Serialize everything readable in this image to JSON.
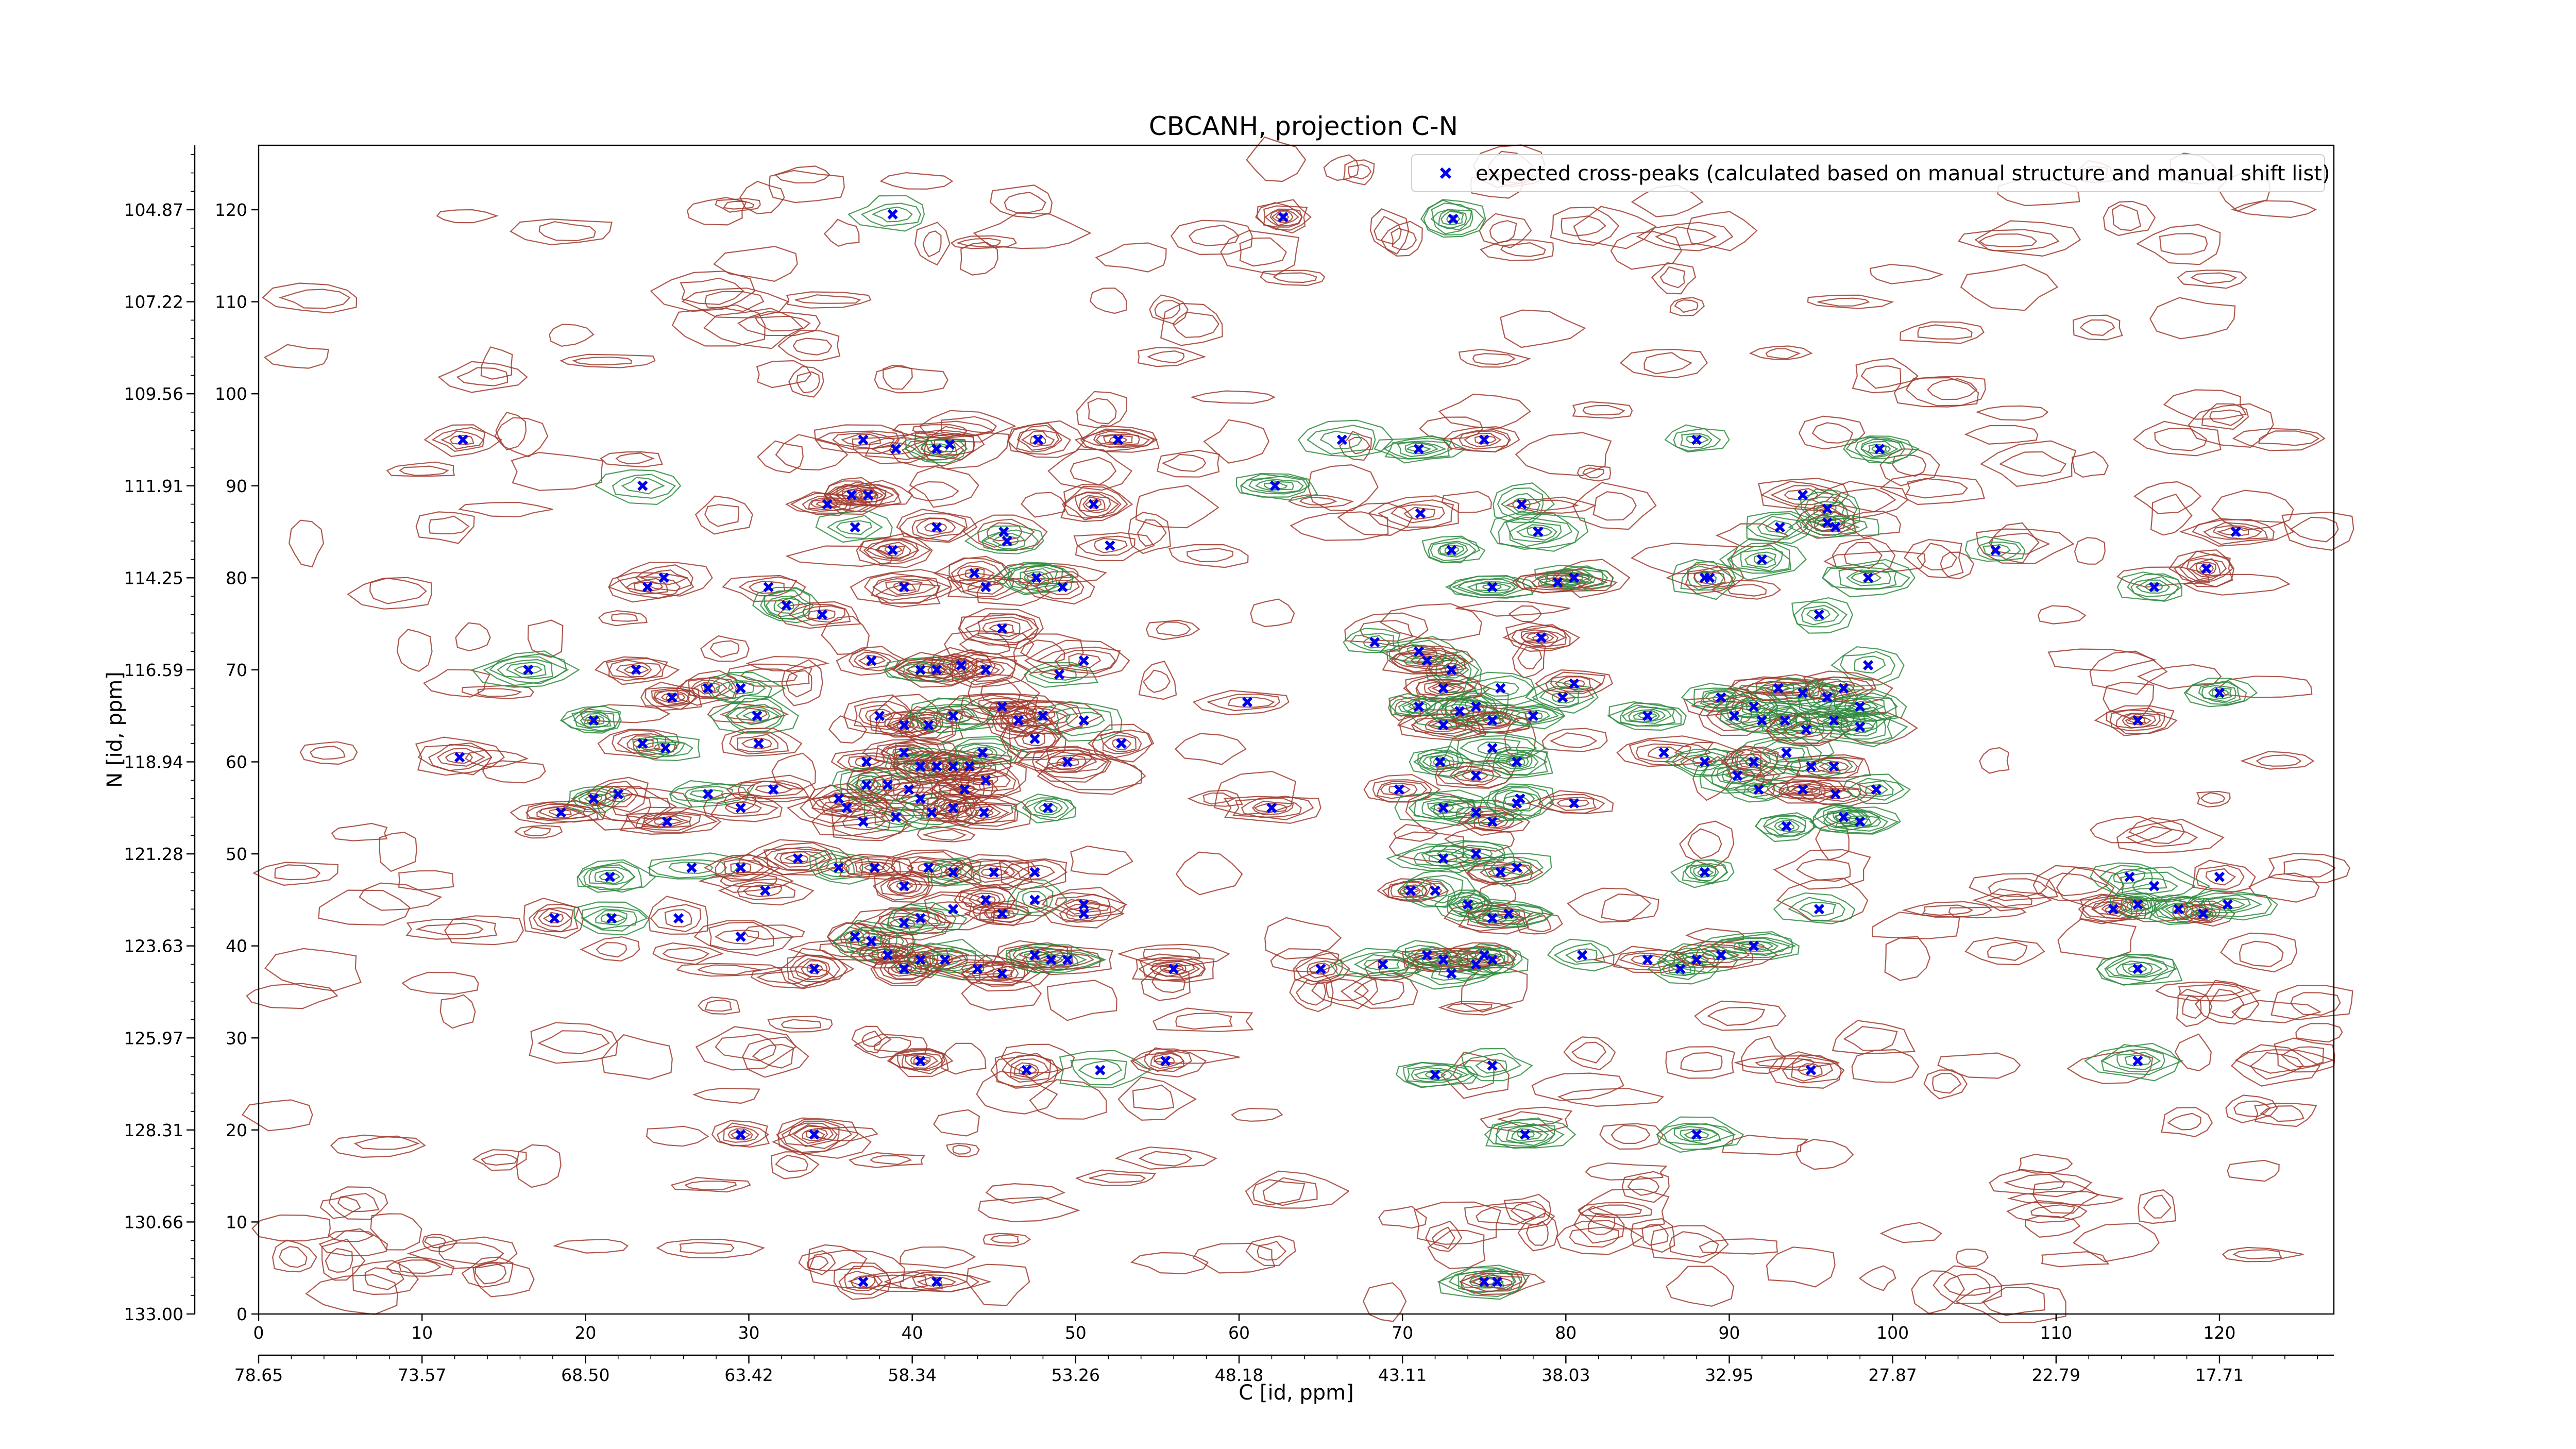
{
  "chart_data": {
    "type": "scatter",
    "title": "CBCANH, projection C-N",
    "xlabel": "C [id, ppm]",
    "ylabel": "N [id, ppm]",
    "xlim": [
      0,
      127
    ],
    "ylim": [
      0,
      127
    ],
    "x_ticks": [
      0,
      10,
      20,
      30,
      40,
      50,
      60,
      70,
      80,
      90,
      100,
      110,
      120
    ],
    "y_ticks": [
      0,
      10,
      20,
      30,
      40,
      50,
      60,
      70,
      80,
      90,
      100,
      110,
      120
    ],
    "x_secondary_ticks": [
      "78.65",
      "73.57",
      "68.50",
      "63.42",
      "58.34",
      "53.26",
      "48.18",
      "43.11",
      "38.03",
      "32.95",
      "27.87",
      "22.79",
      "17.71"
    ],
    "y_secondary_ticks": [
      "133.00",
      "130.66",
      "128.31",
      "125.97",
      "123.63",
      "121.28",
      "118.94",
      "116.59",
      "114.25",
      "111.91",
      "109.56",
      "107.22",
      "104.87"
    ],
    "legend": {
      "label": "expected cross-peaks (calculated based on manual structure and manual shift list)",
      "position": "top-right"
    },
    "colors": {
      "peaks": "#0000ee",
      "contour_positive": "#a0392d",
      "contour_negative": "#2e8b3e"
    },
    "series": [
      {
        "marker": "x",
        "points": [
          [
            38.8,
            119.5
          ],
          [
            62.7,
            119.2
          ],
          [
            73.1,
            119
          ],
          [
            12.5,
            95
          ],
          [
            23.5,
            90
          ],
          [
            34.8,
            88
          ],
          [
            37,
            95
          ],
          [
            39,
            94
          ],
          [
            41.5,
            94
          ],
          [
            42.3,
            94.5
          ],
          [
            47.7,
            95
          ],
          [
            52.6,
            95
          ],
          [
            62.2,
            90
          ],
          [
            66.3,
            95
          ],
          [
            71,
            94
          ],
          [
            75,
            95
          ],
          [
            88,
            95
          ],
          [
            99.2,
            94
          ],
          [
            36.3,
            89
          ],
          [
            37.3,
            89
          ],
          [
            36.5,
            85.5
          ],
          [
            38.8,
            83
          ],
          [
            41.5,
            85.5
          ],
          [
            45.6,
            85
          ],
          [
            45.8,
            84
          ],
          [
            51.1,
            88
          ],
          [
            52.1,
            83.5
          ],
          [
            71.1,
            87
          ],
          [
            77.3,
            88
          ],
          [
            78.3,
            85
          ],
          [
            94.5,
            89
          ],
          [
            96,
            87.5
          ],
          [
            93.1,
            85.5
          ],
          [
            96,
            86
          ],
          [
            96.5,
            85.5
          ],
          [
            106.3,
            83
          ],
          [
            121,
            85
          ],
          [
            23.8,
            79
          ],
          [
            24.8,
            80
          ],
          [
            31.2,
            79
          ],
          [
            32.3,
            77
          ],
          [
            39.5,
            79
          ],
          [
            43.8,
            80.5
          ],
          [
            44.5,
            79
          ],
          [
            47.6,
            80
          ],
          [
            49.2,
            79
          ],
          [
            73,
            83
          ],
          [
            75.5,
            79
          ],
          [
            79.5,
            79.5
          ],
          [
            80.5,
            80
          ],
          [
            88.5,
            80
          ],
          [
            88.8,
            80
          ],
          [
            92,
            82
          ],
          [
            98.5,
            80
          ],
          [
            119.2,
            81
          ],
          [
            116,
            79
          ],
          [
            95.5,
            76
          ],
          [
            34.5,
            76
          ],
          [
            45.5,
            74.5
          ],
          [
            68.3,
            73
          ],
          [
            78.5,
            73.5
          ],
          [
            16.5,
            70
          ],
          [
            23.1,
            70
          ],
          [
            37.5,
            71
          ],
          [
            40.5,
            70
          ],
          [
            41.5,
            70
          ],
          [
            43,
            70.5
          ],
          [
            44.5,
            70
          ],
          [
            49,
            69.5
          ],
          [
            50.5,
            71
          ],
          [
            71,
            72
          ],
          [
            73,
            70
          ],
          [
            71.5,
            71
          ],
          [
            98.5,
            70.5
          ],
          [
            25.3,
            67
          ],
          [
            27.5,
            68
          ],
          [
            29.5,
            68
          ],
          [
            60.5,
            66.5
          ],
          [
            72.5,
            68
          ],
          [
            76,
            68
          ],
          [
            79.8,
            67
          ],
          [
            80.5,
            68.5
          ],
          [
            89.5,
            67
          ],
          [
            91.5,
            66
          ],
          [
            93,
            68
          ],
          [
            94.5,
            67.5
          ],
          [
            96,
            67
          ],
          [
            97,
            68
          ],
          [
            98,
            66
          ],
          [
            120,
            67.5
          ],
          [
            115,
            64.5
          ],
          [
            20.5,
            64.5
          ],
          [
            30.5,
            65
          ],
          [
            38,
            65
          ],
          [
            39.5,
            64
          ],
          [
            41,
            64
          ],
          [
            42.5,
            65
          ],
          [
            45.5,
            66
          ],
          [
            46.5,
            64.5
          ],
          [
            48,
            65
          ],
          [
            50.5,
            64.5
          ],
          [
            71,
            66
          ],
          [
            72.5,
            64
          ],
          [
            73.5,
            65.5
          ],
          [
            74.5,
            66
          ],
          [
            75.5,
            64.5
          ],
          [
            78,
            65
          ],
          [
            85,
            65
          ],
          [
            90.3,
            65
          ],
          [
            92,
            64.5
          ],
          [
            93.4,
            64.5
          ],
          [
            94.7,
            63.5
          ],
          [
            96.4,
            64.5
          ],
          [
            98,
            63.8
          ],
          [
            12.3,
            60.5
          ],
          [
            23.5,
            62
          ],
          [
            24.9,
            61.5
          ],
          [
            30.6,
            62
          ],
          [
            37.2,
            60
          ],
          [
            39.5,
            61
          ],
          [
            40.5,
            59.5
          ],
          [
            41.5,
            59.5
          ],
          [
            42.5,
            59.5
          ],
          [
            43.5,
            59.5
          ],
          [
            44.3,
            61
          ],
          [
            47.5,
            62.5
          ],
          [
            49.5,
            60
          ],
          [
            52.8,
            62
          ],
          [
            72.3,
            60
          ],
          [
            74.5,
            58.5
          ],
          [
            75.5,
            61.5
          ],
          [
            77,
            60
          ],
          [
            86,
            61
          ],
          [
            88.5,
            60
          ],
          [
            90.5,
            58.5
          ],
          [
            91.5,
            60
          ],
          [
            93.5,
            61
          ],
          [
            95,
            59.5
          ],
          [
            96.4,
            59.5
          ],
          [
            99,
            57
          ],
          [
            20.5,
            56
          ],
          [
            18.5,
            54.5
          ],
          [
            22,
            56.5
          ],
          [
            25,
            53.5
          ],
          [
            27.5,
            56.5
          ],
          [
            29.5,
            55
          ],
          [
            31.5,
            57
          ],
          [
            35.5,
            56
          ],
          [
            37.2,
            57.5
          ],
          [
            38.5,
            57.5
          ],
          [
            39.8,
            57
          ],
          [
            40.5,
            56
          ],
          [
            41.2,
            54.5
          ],
          [
            43.2,
            57
          ],
          [
            44.5,
            58
          ],
          [
            42.5,
            55
          ],
          [
            39,
            54
          ],
          [
            36,
            55
          ],
          [
            37,
            53.5
          ],
          [
            44.4,
            54.5
          ],
          [
            48.3,
            55
          ],
          [
            62,
            55
          ],
          [
            69.8,
            57
          ],
          [
            72.5,
            55
          ],
          [
            74.5,
            54.5
          ],
          [
            75.5,
            53.5
          ],
          [
            77,
            55.5
          ],
          [
            77.2,
            56
          ],
          [
            80.5,
            55.5
          ],
          [
            91.8,
            57
          ],
          [
            93.5,
            53
          ],
          [
            96.5,
            56.5
          ],
          [
            97,
            54
          ],
          [
            98,
            53.5
          ],
          [
            94.5,
            57
          ],
          [
            21.5,
            47.5
          ],
          [
            26.5,
            48.5
          ],
          [
            29.5,
            48.5
          ],
          [
            31,
            46
          ],
          [
            33,
            49.5
          ],
          [
            35.5,
            48.5
          ],
          [
            37.7,
            48.5
          ],
          [
            39.5,
            46.5
          ],
          [
            41,
            48.5
          ],
          [
            42.5,
            48
          ],
          [
            45,
            48
          ],
          [
            47.5,
            48
          ],
          [
            72.5,
            49.5
          ],
          [
            74.5,
            50
          ],
          [
            76,
            48
          ],
          [
            77,
            48.5
          ],
          [
            88.5,
            48
          ],
          [
            120,
            47.5
          ],
          [
            114.5,
            47.5
          ],
          [
            116,
            46.5
          ],
          [
            18.1,
            43
          ],
          [
            21.6,
            43
          ],
          [
            25.7,
            43
          ],
          [
            29.5,
            41
          ],
          [
            39.5,
            42.5
          ],
          [
            40.5,
            43
          ],
          [
            42.5,
            44
          ],
          [
            44.5,
            45
          ],
          [
            45.5,
            43.5
          ],
          [
            47.5,
            45
          ],
          [
            50.5,
            44.5
          ],
          [
            50.5,
            43.5
          ],
          [
            70.5,
            46
          ],
          [
            72,
            46
          ],
          [
            74,
            44.5
          ],
          [
            75.5,
            43
          ],
          [
            76.5,
            43.5
          ],
          [
            95.5,
            44
          ],
          [
            113.5,
            44
          ],
          [
            115,
            44.5
          ],
          [
            117.5,
            44
          ],
          [
            119,
            43.5
          ],
          [
            120.5,
            44.5
          ],
          [
            34,
            37.5
          ],
          [
            36.5,
            41
          ],
          [
            37.5,
            40.5
          ],
          [
            38.5,
            39
          ],
          [
            39.5,
            37.5
          ],
          [
            40.5,
            38.5
          ],
          [
            42,
            38.5
          ],
          [
            44,
            37.5
          ],
          [
            45.5,
            37
          ],
          [
            47.5,
            39
          ],
          [
            48.5,
            38.5
          ],
          [
            49.5,
            38.5
          ],
          [
            56,
            37.5
          ],
          [
            65,
            37.5
          ],
          [
            68.8,
            38
          ],
          [
            71.5,
            39
          ],
          [
            72.5,
            38.5
          ],
          [
            73,
            37
          ],
          [
            74.5,
            38
          ],
          [
            75,
            39
          ],
          [
            75.5,
            38.5
          ],
          [
            81,
            39
          ],
          [
            85,
            38.5
          ],
          [
            87,
            37.5
          ],
          [
            88,
            38.5
          ],
          [
            89.5,
            39
          ],
          [
            91.5,
            40
          ],
          [
            115,
            37.5
          ],
          [
            40.5,
            27.5
          ],
          [
            47,
            26.5
          ],
          [
            51.5,
            26.5
          ],
          [
            55.5,
            27.5
          ],
          [
            72,
            26
          ],
          [
            75.5,
            27
          ],
          [
            95,
            26.5
          ],
          [
            115,
            27.5
          ],
          [
            29.5,
            19.5
          ],
          [
            34,
            19.5
          ],
          [
            77.5,
            19.5
          ],
          [
            88,
            19.5
          ],
          [
            37,
            3.5
          ],
          [
            41.5,
            3.5
          ],
          [
            75,
            3.5
          ],
          [
            75.8,
            3.5
          ]
        ]
      }
    ]
  }
}
